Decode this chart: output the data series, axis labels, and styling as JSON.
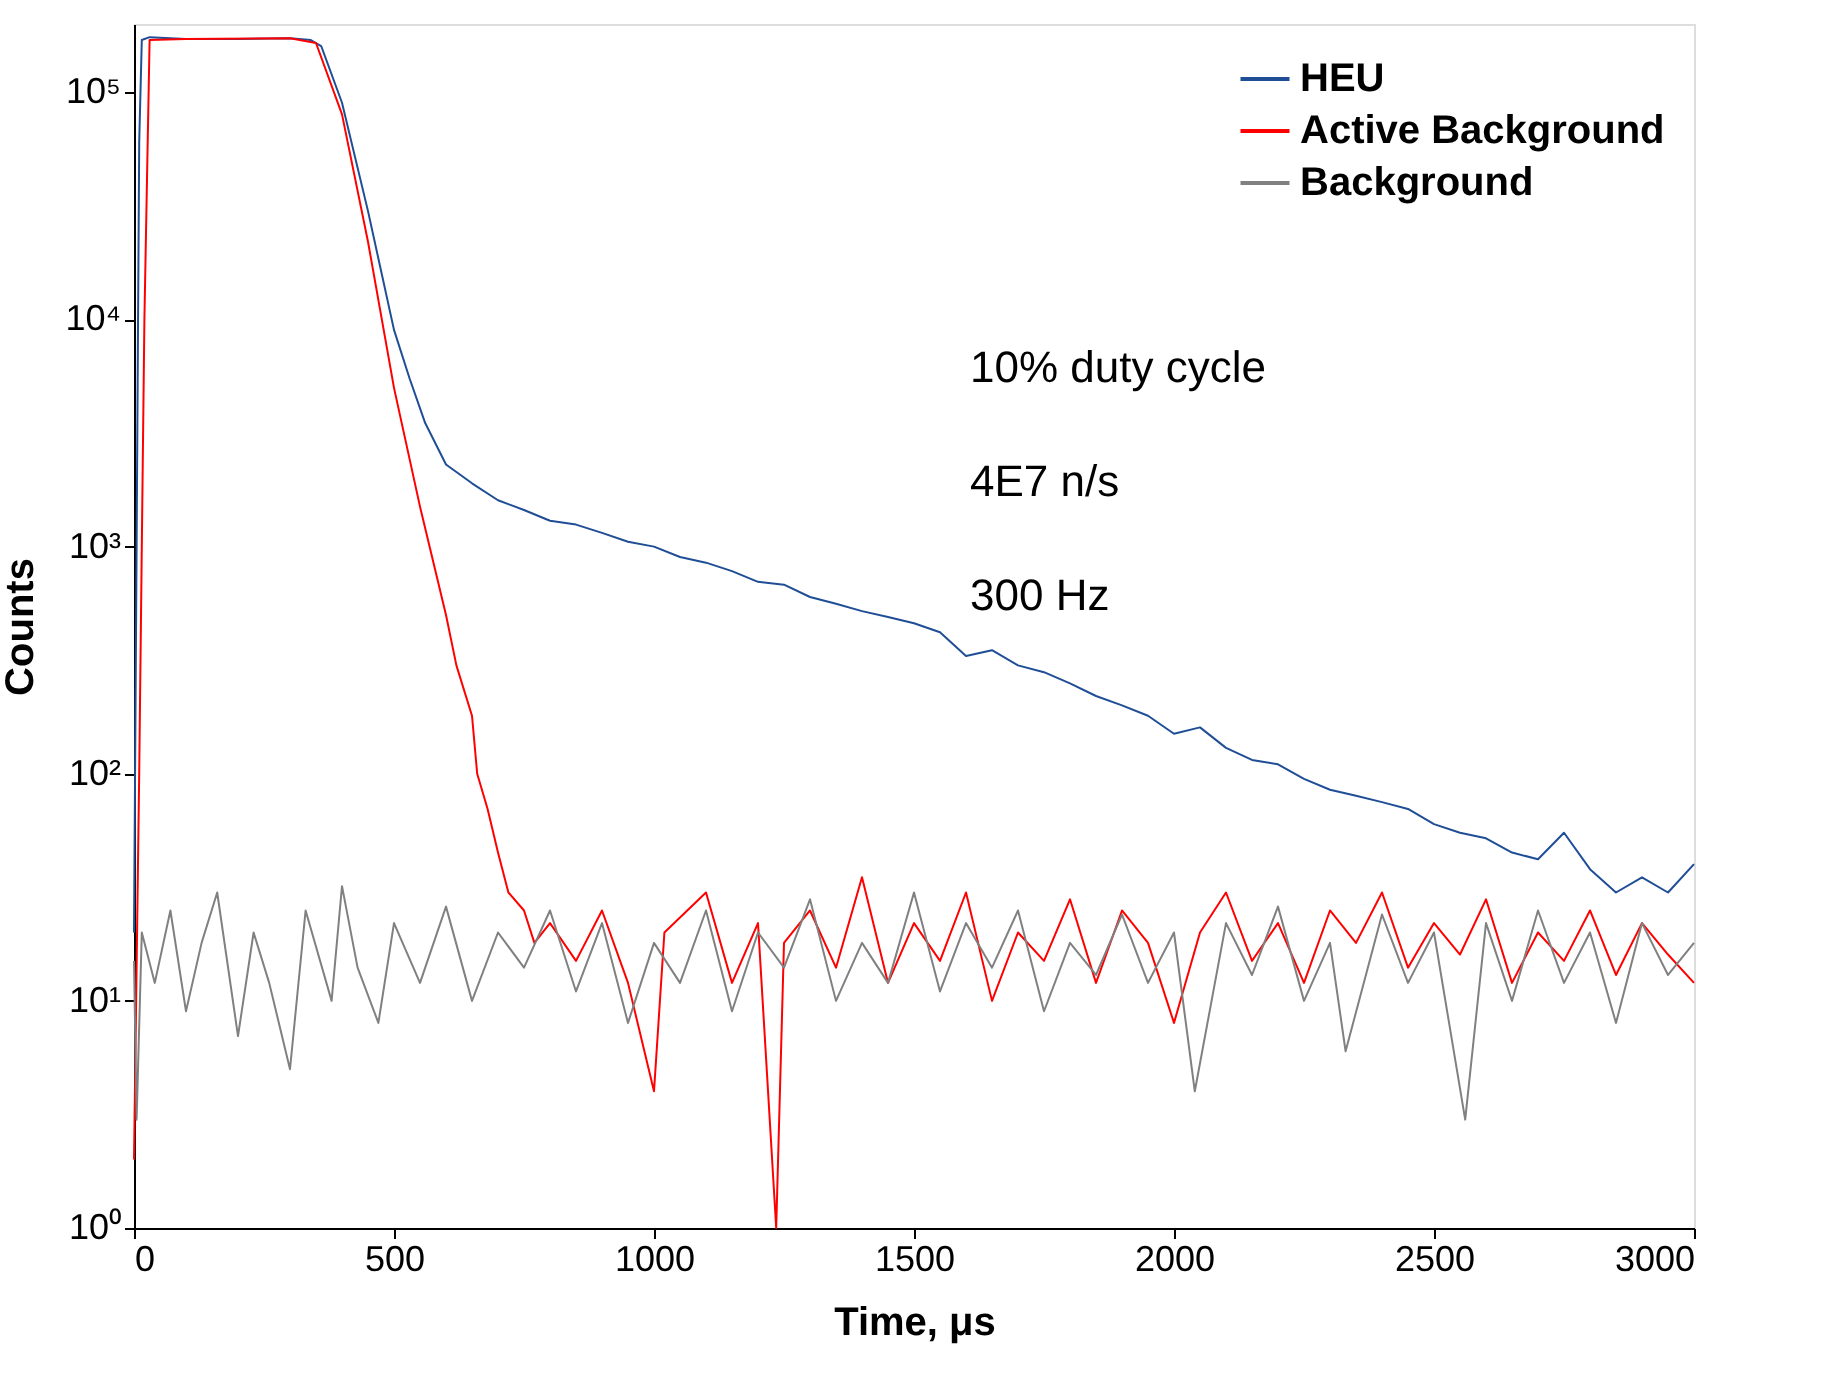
{
  "chart_data": {
    "type": "line",
    "xlabel": "Time, μs",
    "ylabel": "Counts",
    "log": "y",
    "grid": false,
    "legend": "top right",
    "marker": "none",
    "line_style": "solid",
    "xlim": [
      0,
      3000
    ],
    "xticks": [
      0,
      500,
      1000,
      1500,
      2000,
      2500,
      3000
    ],
    "ylim": [
      1,
      200000
    ],
    "yticks": [
      {
        "value": 1,
        "label": "10⁰"
      },
      {
        "value": 10,
        "label": "10¹"
      },
      {
        "value": 100,
        "label": "10²"
      },
      {
        "value": 1000,
        "label": "10³"
      },
      {
        "value": 10000,
        "label": "10⁴"
      },
      {
        "value": 100000,
        "label": "10⁵"
      }
    ],
    "annotations": [
      "10% duty cycle",
      "4E7 n/s",
      "300 Hz"
    ],
    "series": [
      {
        "name": "HEU",
        "color": "#1f4e96",
        "x": [
          0,
          5,
          10,
          15,
          30,
          100,
          200,
          300,
          340,
          360,
          400,
          450,
          500,
          530,
          560,
          600,
          650,
          700,
          750,
          800,
          850,
          900,
          950,
          1000,
          1050,
          1100,
          1150,
          1200,
          1250,
          1300,
          1350,
          1400,
          1450,
          1500,
          1550,
          1600,
          1650,
          1700,
          1750,
          1800,
          1850,
          1900,
          1950,
          2000,
          2050,
          2100,
          2150,
          2200,
          2250,
          2300,
          2350,
          2400,
          2450,
          2500,
          2550,
          2600,
          2650,
          2700,
          2750,
          2800,
          2850,
          2900,
          2950,
          3000
        ],
        "values": [
          20,
          1000,
          60000,
          170000,
          175000,
          172000,
          172000,
          173000,
          170000,
          160000,
          90000,
          30000,
          9000,
          5500,
          3500,
          2300,
          1900,
          1600,
          1450,
          1300,
          1250,
          1150,
          1050,
          1000,
          900,
          850,
          780,
          700,
          680,
          600,
          560,
          520,
          490,
          460,
          420,
          330,
          350,
          300,
          280,
          250,
          220,
          200,
          180,
          150,
          160,
          130,
          115,
          110,
          95,
          85,
          80,
          75,
          70,
          60,
          55,
          52,
          45,
          42,
          55,
          38,
          30,
          35,
          30,
          40
        ]
      },
      {
        "name": "Active Background",
        "color": "#ff0000",
        "x": [
          0,
          10,
          20,
          30,
          100,
          300,
          350,
          400,
          450,
          500,
          550,
          600,
          620,
          650,
          660,
          680,
          700,
          720,
          750,
          770,
          800,
          850,
          900,
          950,
          1000,
          1020,
          1100,
          1150,
          1200,
          1235,
          1250,
          1300,
          1350,
          1400,
          1450,
          1500,
          1550,
          1600,
          1650,
          1700,
          1750,
          1800,
          1850,
          1900,
          1950,
          2000,
          2050,
          2100,
          2150,
          2200,
          2250,
          2300,
          2350,
          2400,
          2450,
          2500,
          2550,
          2600,
          2650,
          2700,
          2750,
          2800,
          2850,
          2900,
          2950,
          3000
        ],
        "values": [
          2,
          100,
          10000,
          170000,
          172000,
          173000,
          165000,
          80000,
          22000,
          5000,
          1500,
          500,
          300,
          180,
          100,
          70,
          45,
          30,
          25,
          18,
          22,
          15,
          25,
          12,
          4,
          20,
          30,
          12,
          22,
          1,
          18,
          25,
          14,
          35,
          12,
          22,
          15,
          30,
          10,
          20,
          15,
          28,
          12,
          25,
          18,
          8,
          20,
          30,
          15,
          22,
          12,
          25,
          18,
          30,
          14,
          22,
          16,
          28,
          12,
          20,
          15,
          25,
          13,
          22,
          16,
          12
        ]
      },
      {
        "name": "Background",
        "color": "#808080",
        "x": [
          0,
          5,
          15,
          40,
          70,
          100,
          130,
          160,
          200,
          230,
          260,
          300,
          330,
          380,
          400,
          430,
          470,
          500,
          550,
          600,
          650,
          700,
          750,
          800,
          850,
          900,
          950,
          1000,
          1050,
          1100,
          1150,
          1200,
          1250,
          1300,
          1350,
          1400,
          1450,
          1500,
          1550,
          1600,
          1650,
          1700,
          1750,
          1800,
          1850,
          1900,
          1950,
          2000,
          2040,
          2100,
          2150,
          2200,
          2250,
          2300,
          2330,
          2400,
          2450,
          2500,
          2560,
          2600,
          2650,
          2700,
          2750,
          2800,
          2850,
          2900,
          2950,
          3000
        ],
        "values": [
          15,
          3,
          20,
          12,
          25,
          9,
          18,
          30,
          7,
          20,
          12,
          5,
          25,
          10,
          32,
          14,
          8,
          22,
          12,
          26,
          10,
          20,
          14,
          25,
          11,
          22,
          8,
          18,
          12,
          25,
          9,
          20,
          14,
          28,
          10,
          18,
          12,
          30,
          11,
          22,
          14,
          25,
          9,
          18,
          13,
          24,
          12,
          20,
          4,
          22,
          13,
          26,
          10,
          18,
          6,
          24,
          12,
          20,
          3,
          22,
          10,
          25,
          12,
          20,
          8,
          22,
          13,
          18
        ]
      }
    ]
  }
}
